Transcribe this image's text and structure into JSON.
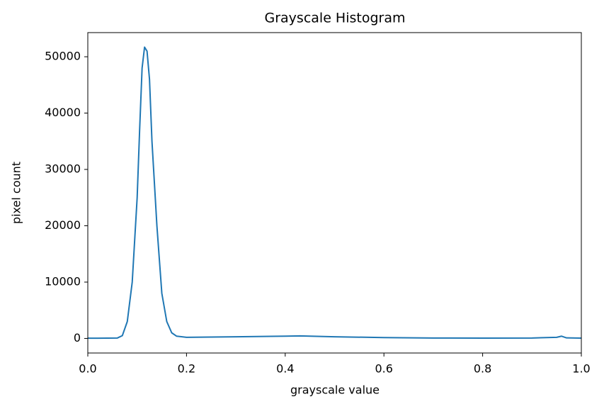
{
  "chart_data": {
    "type": "line",
    "title": "Grayscale Histogram",
    "xlabel": "grayscale value",
    "ylabel": "pixel count",
    "x": [
      0.0,
      0.02,
      0.04,
      0.06,
      0.07,
      0.08,
      0.09,
      0.1,
      0.105,
      0.11,
      0.115,
      0.12,
      0.125,
      0.13,
      0.14,
      0.15,
      0.16,
      0.17,
      0.18,
      0.2,
      0.3,
      0.4,
      0.43,
      0.5,
      0.6,
      0.7,
      0.8,
      0.9,
      0.95,
      0.96,
      0.97,
      1.0
    ],
    "series": [
      {
        "color": "#1f77b4",
        "values": [
          50,
          40,
          60,
          80,
          500,
          3000,
          10000,
          25000,
          37000,
          48000,
          51700,
          51000,
          46000,
          35000,
          20000,
          8000,
          3000,
          1000,
          400,
          200,
          300,
          400,
          450,
          300,
          150,
          80,
          60,
          80,
          200,
          400,
          100,
          50
        ]
      }
    ],
    "xlim": [
      0,
      1
    ],
    "xticks": [
      {
        "value": 0,
        "label": "0.0"
      },
      0.2,
      0.4,
      0.6,
      0.8,
      {
        "value": 1,
        "label": "1.0"
      }
    ],
    "ylim": [
      -2585,
      54285
    ],
    "yticks": [
      0,
      10000,
      20000,
      30000,
      40000,
      50000
    ],
    "grid": false
  }
}
